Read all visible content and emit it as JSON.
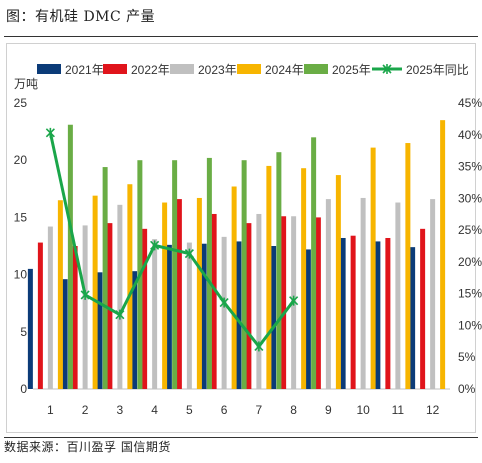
{
  "title": "图：有机硅 DMC 产量",
  "source": "数据来源：百川盈孚 国信期货",
  "colors": {
    "2021": "#0b3b78",
    "2022": "#e0141b",
    "2023": "#c0c0c0",
    "2024": "#f7b500",
    "2025": "#6aad45",
    "yoy": "#1aa64a"
  },
  "chart_data": {
    "type": "bar",
    "y_unit_label": "万吨",
    "categories": [
      "1",
      "2",
      "3",
      "4",
      "5",
      "6",
      "7",
      "8",
      "9",
      "10",
      "11",
      "12"
    ],
    "ylim": [
      0,
      25
    ],
    "yticks": [
      "0",
      "5",
      "10",
      "15",
      "20",
      "25"
    ],
    "y2lim": [
      0,
      45
    ],
    "y2ticks": [
      "0%",
      "5%",
      "10%",
      "15%",
      "20%",
      "25%",
      "30%",
      "35%",
      "40%",
      "45%"
    ],
    "legend_position": "top",
    "grid": false,
    "series": [
      {
        "name": "2021年",
        "color_key": "2021",
        "values": [
          10.5,
          9.6,
          10.2,
          10.3,
          12.6,
          12.7,
          12.9,
          12.5,
          12.2,
          13.2,
          12.9,
          12.4
        ]
      },
      {
        "name": "2022年",
        "color_key": "2022",
        "values": [
          12.8,
          12.5,
          14.5,
          14.0,
          16.6,
          15.3,
          14.5,
          15.1,
          15.0,
          13.4,
          13.2,
          14.0
        ]
      },
      {
        "name": "2023年",
        "color_key": "2023",
        "values": [
          14.2,
          14.3,
          16.1,
          13.1,
          12.8,
          13.3,
          15.3,
          15.1,
          16.6,
          16.7,
          16.3,
          16.6
        ]
      },
      {
        "name": "2024年",
        "color_key": "2024",
        "values": [
          16.5,
          16.9,
          17.9,
          16.3,
          16.7,
          17.7,
          19.5,
          19.3,
          18.7,
          21.1,
          21.5,
          23.5
        ]
      },
      {
        "name": "2025年",
        "color_key": "2025",
        "values": [
          23.1,
          19.4,
          20.0,
          20.0,
          20.2,
          20.0,
          20.7,
          22.0,
          null,
          null,
          null,
          null
        ]
      }
    ],
    "line_series": {
      "name": "2025年同比",
      "color_key": "yoy",
      "axis": "right",
      "values": [
        40.3,
        14.8,
        11.7,
        22.6,
        21.3,
        13.6,
        6.7,
        13.9,
        null,
        null,
        null,
        null
      ]
    }
  }
}
